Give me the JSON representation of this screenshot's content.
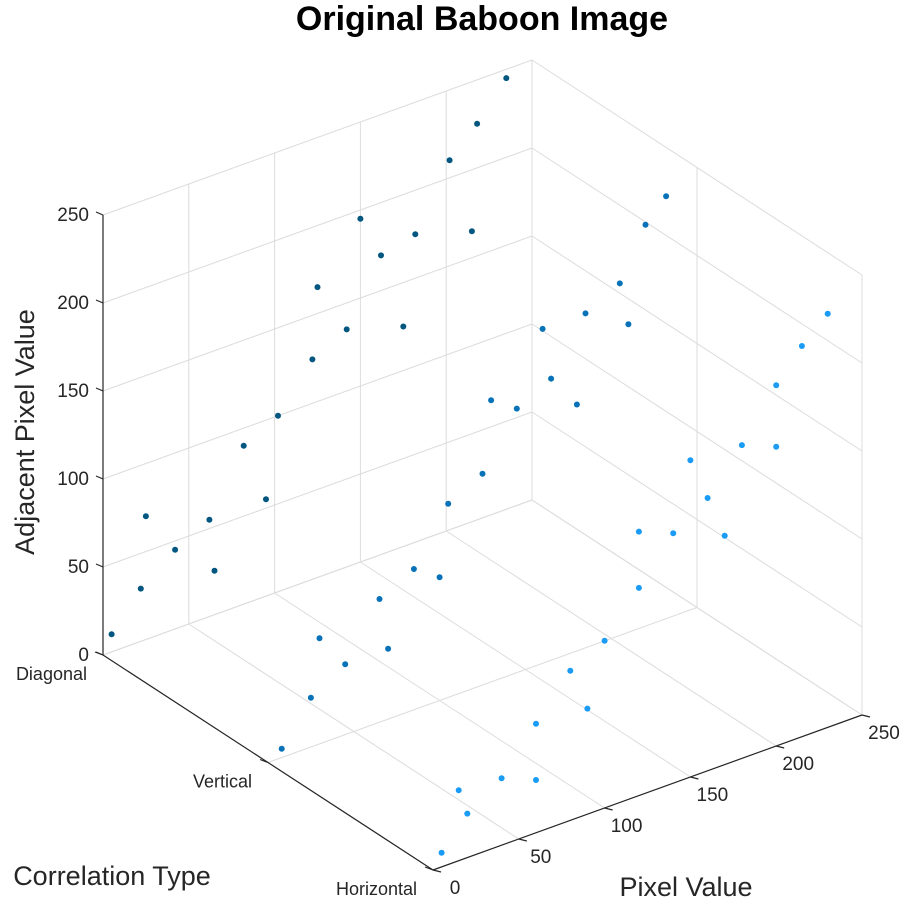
{
  "chart_data": {
    "type": "scatter",
    "projection": "3d",
    "title": "Original Baboon Image",
    "xlabel": "Pixel Value",
    "ylabel": "Correlation Type",
    "zlabel": "Adjacent Pixel Value",
    "xlim": [
      0,
      250
    ],
    "zlim": [
      0,
      250
    ],
    "x_ticks": [
      0,
      50,
      100,
      150,
      200,
      250
    ],
    "z_ticks": [
      0,
      50,
      100,
      150,
      200,
      250
    ],
    "categories": [
      "Horizontal",
      "Vertical",
      "Diagonal"
    ],
    "grid": true,
    "series": [
      {
        "category": "Horizontal",
        "color": "#1a9bf5",
        "points": [
          [
            5,
            8
          ],
          [
            20,
            25
          ],
          [
            40,
            38
          ],
          [
            60,
            62
          ],
          [
            80,
            85
          ],
          [
            100,
            95
          ],
          [
            120,
            118
          ],
          [
            140,
            142
          ],
          [
            160,
            155
          ],
          [
            180,
            178
          ],
          [
            200,
            205
          ],
          [
            215,
            222
          ],
          [
            230,
            235
          ],
          [
            15,
            40
          ],
          [
            90,
            60
          ],
          [
            150,
            180
          ],
          [
            200,
            170
          ],
          [
            60,
            30
          ],
          [
            120,
            150
          ],
          [
            170,
            130
          ]
        ]
      },
      {
        "category": "Vertical",
        "color": "#0872b8",
        "points": [
          [
            8,
            5
          ],
          [
            25,
            28
          ],
          [
            45,
            40
          ],
          [
            65,
            70
          ],
          [
            85,
            80
          ],
          [
            105,
            110
          ],
          [
            125,
            120
          ],
          [
            145,
            150
          ],
          [
            165,
            160
          ],
          [
            185,
            190
          ],
          [
            205,
            200
          ],
          [
            220,
            228
          ],
          [
            232,
            240
          ],
          [
            30,
            60
          ],
          [
            100,
            70
          ],
          [
            160,
            190
          ],
          [
            210,
            175
          ],
          [
            70,
            40
          ],
          [
            130,
            160
          ],
          [
            180,
            140
          ]
        ]
      },
      {
        "category": "Diagonal",
        "color": "#025680",
        "points": [
          [
            5,
            10
          ],
          [
            22,
            30
          ],
          [
            42,
            45
          ],
          [
            62,
            55
          ],
          [
            82,
            90
          ],
          [
            102,
            100
          ],
          [
            122,
            125
          ],
          [
            142,
            135
          ],
          [
            162,
            170
          ],
          [
            182,
            175
          ],
          [
            202,
            210
          ],
          [
            218,
            225
          ],
          [
            235,
            245
          ],
          [
            25,
            70
          ],
          [
            95,
            55
          ],
          [
            150,
            195
          ],
          [
            215,
            165
          ],
          [
            65,
            25
          ],
          [
            125,
            165
          ],
          [
            175,
            125
          ]
        ]
      }
    ]
  }
}
